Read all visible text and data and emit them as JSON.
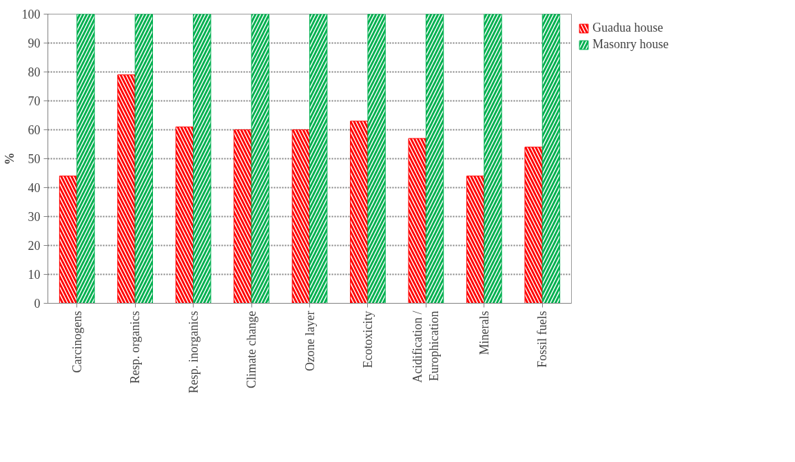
{
  "chart_data": {
    "type": "bar",
    "ylabel": "%",
    "categories": [
      "Carcinogens",
      "Resp. organics",
      "Resp. inorganics",
      "Climate change",
      "Ozone layer",
      "Ecotoxicity",
      "Acidification /\nEurophication",
      "Minerals",
      "Fossil fuels"
    ],
    "series": [
      {
        "name": "Guadua house",
        "color": "#ff0000",
        "values": [
          44,
          79,
          61,
          60,
          60,
          63,
          57,
          44,
          54
        ]
      },
      {
        "name": "Masonry house",
        "color": "#00b050",
        "values": [
          100,
          100,
          100,
          100,
          100,
          100,
          100,
          100,
          100
        ]
      }
    ],
    "ylim": [
      0,
      100
    ],
    "yticks": [
      0,
      10,
      20,
      30,
      40,
      50,
      60,
      70,
      80,
      90,
      100
    ],
    "grid": "y",
    "legend": "top right"
  }
}
